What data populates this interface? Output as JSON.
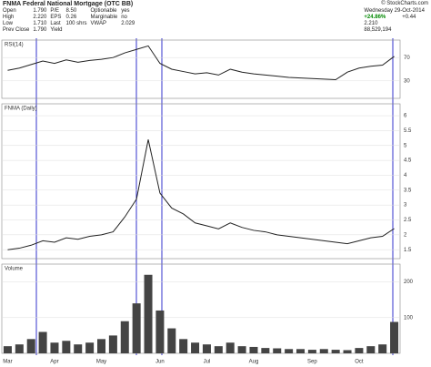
{
  "header": {
    "title": "FNMA Federal National Mortgage (OTC BB)",
    "source": "© StockCharts.com",
    "rows": [
      [
        "Open",
        "1.790",
        "P/E",
        "8.50",
        "Optionable",
        "yes"
      ],
      [
        "High",
        "2.220",
        "EPS",
        "0.26",
        "Marginable",
        "no"
      ],
      [
        "Low",
        "1.710",
        "Last",
        "100 shrs",
        "VWAP",
        "2.029"
      ],
      [
        "Prev Close",
        "1.790",
        "Yield",
        "",
        "",
        ""
      ]
    ],
    "date": "Wednesday 29-Oct-2014",
    "change_pct": "+24.86%",
    "chg": "+0.44",
    "close": "2.210",
    "volume": "88,529,194"
  },
  "chart_data": [
    {
      "type": "line",
      "title": "RSI(14)",
      "color": "#222222",
      "categories": [
        "Mar",
        null,
        null,
        null,
        "Apr",
        null,
        null,
        null,
        "May",
        null,
        null,
        null,
        null,
        "Jun",
        null,
        null,
        null,
        "Jul",
        null,
        null,
        null,
        "Aug",
        null,
        null,
        null,
        null,
        "Sep",
        null,
        null,
        null,
        "Oct",
        null,
        null,
        null
      ],
      "values": [
        48,
        52,
        58,
        64,
        60,
        66,
        62,
        65,
        67,
        70,
        78,
        84,
        90,
        60,
        50,
        46,
        42,
        44,
        40,
        50,
        45,
        42,
        40,
        38,
        36,
        35,
        34,
        33,
        32,
        45,
        52,
        55,
        57,
        72
      ],
      "ylim": [
        0,
        100
      ],
      "yticks": [
        30,
        70
      ]
    },
    {
      "type": "line",
      "title": "FNMA (Daily)",
      "color": "#222222",
      "categories": [
        "Mar",
        null,
        null,
        null,
        "Apr",
        null,
        null,
        null,
        "May",
        null,
        null,
        null,
        null,
        "Jun",
        null,
        null,
        null,
        "Jul",
        null,
        null,
        null,
        "Aug",
        null,
        null,
        null,
        null,
        "Sep",
        null,
        null,
        null,
        "Oct",
        null,
        null,
        null
      ],
      "values": [
        1.5,
        1.55,
        1.65,
        1.8,
        1.75,
        1.9,
        1.85,
        1.95,
        2.0,
        2.1,
        2.6,
        3.2,
        5.2,
        3.4,
        2.9,
        2.7,
        2.4,
        2.3,
        2.2,
        2.4,
        2.25,
        2.15,
        2.1,
        2.0,
        1.95,
        1.9,
        1.85,
        1.8,
        1.75,
        1.7,
        1.8,
        1.9,
        1.95,
        2.21
      ],
      "ylim": [
        1.2,
        6.4
      ],
      "yticks": [
        1.5,
        2,
        2.5,
        3,
        3.5,
        4,
        4.5,
        5,
        5.5,
        6
      ]
    },
    {
      "type": "bar",
      "title": "Volume",
      "color": "#444444",
      "categories": [
        "Mar",
        null,
        null,
        null,
        "Apr",
        null,
        null,
        null,
        "May",
        null,
        null,
        null,
        null,
        "Jun",
        null,
        null,
        null,
        "Jul",
        null,
        null,
        null,
        "Aug",
        null,
        null,
        null,
        null,
        "Sep",
        null,
        null,
        null,
        "Oct",
        null,
        null,
        null
      ],
      "values": [
        20,
        25,
        40,
        60,
        30,
        35,
        25,
        30,
        40,
        50,
        90,
        140,
        220,
        120,
        70,
        40,
        30,
        25,
        20,
        30,
        20,
        18,
        15,
        14,
        12,
        12,
        10,
        12,
        10,
        9,
        15,
        20,
        25,
        88
      ],
      "ylim": [
        0,
        250
      ],
      "yticks": [
        100,
        200
      ]
    }
  ]
}
